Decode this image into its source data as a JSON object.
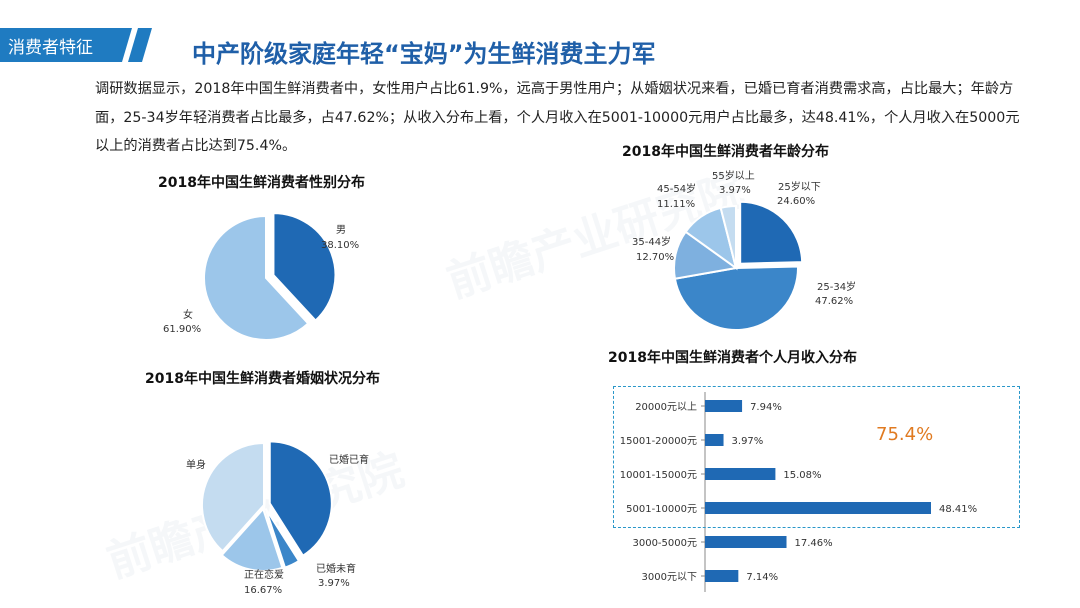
{
  "header": {
    "tag": "消费者特征",
    "title": "中产阶级家庭年轻“宝妈”为生鲜消费主力军"
  },
  "intro": "调研数据显示，2018年中国生鲜消费者中，女性用户占比61.9%，远高于男性用户；从婚姻状况来看，已婚已育者消费需求高，占比最大；年龄方面，25-34岁年轻消费者占比最多，占47.62%；从收入分布上看，个人月收入在5001-10000元用户占比最多，达48.41%，个人月收入在5000元以上的消费者占比达到75.4%。",
  "callout": "75.4%",
  "colors": {
    "header_blue": "#1f7bc1",
    "dark_blue": "#1f69b4",
    "mid_blue": "#3b86c9",
    "light_blue": "#9cc6ea",
    "pale_blue": "#c4dcf0",
    "bar_blue": "#1f69b4",
    "callout_orange": "#e07a20",
    "dash_border": "#2a97c9"
  },
  "chart_data": [
    {
      "id": "gender",
      "type": "pie",
      "title": "2018年中国生鲜消费者性别分布",
      "slices": [
        {
          "name": "男",
          "value": 38.1,
          "label": "38.10%"
        },
        {
          "name": "女",
          "value": 61.9,
          "label": "61.90%"
        }
      ]
    },
    {
      "id": "marriage",
      "type": "pie",
      "title": "2018年中国生鲜消费者婚姻状况分布",
      "slices": [
        {
          "name": "已婚已育",
          "value": 41.0,
          "label": ""
        },
        {
          "name": "已婚未育",
          "value": 3.97,
          "label": "3.97%"
        },
        {
          "name": "正在恋爱",
          "value": 16.67,
          "label": "16.67%"
        },
        {
          "name": "单身",
          "value": 38.36,
          "label": ""
        }
      ]
    },
    {
      "id": "age",
      "type": "pie",
      "title": "2018年中国生鲜消费者年龄分布",
      "slices": [
        {
          "name": "25岁以下",
          "value": 24.6,
          "label": "24.60%"
        },
        {
          "name": "25-34岁",
          "value": 47.62,
          "label": "47.62%"
        },
        {
          "name": "35-44岁",
          "value": 12.7,
          "label": "12.70%"
        },
        {
          "name": "45-54岁",
          "value": 11.11,
          "label": "11.11%"
        },
        {
          "name": "55岁以上",
          "value": 3.97,
          "label": "3.97%"
        }
      ]
    },
    {
      "id": "income",
      "type": "bar",
      "orientation": "horizontal",
      "title": "2018年中国生鲜消费者个人月收入分布",
      "categories": [
        "20000元以上",
        "15001-20000元",
        "10001-15000元",
        "5001-10000元",
        "3000-5000元",
        "3000元以下"
      ],
      "values": [
        7.94,
        3.97,
        15.08,
        48.41,
        17.46,
        7.14
      ],
      "labels": [
        "7.94%",
        "3.97%",
        "15.08%",
        "48.41%",
        "17.46%",
        "7.14%"
      ]
    }
  ]
}
